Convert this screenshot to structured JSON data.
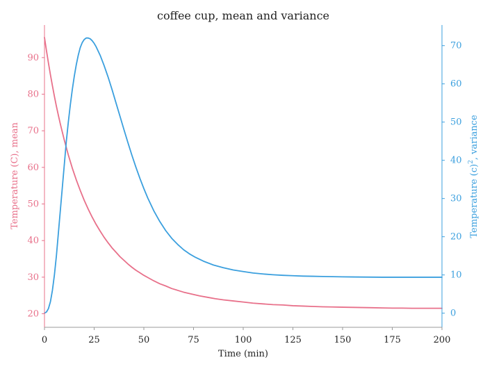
{
  "chart_data": {
    "type": "line",
    "title": "coffee cup, mean and variance",
    "xlabel": "Time (min)",
    "ylabel_left": "Temperature (C), mean",
    "ylabel_right_prefix": "Temperature (c)",
    "ylabel_right_sup": "2",
    "ylabel_right_suffix": ", variance",
    "xlim": [
      0,
      200
    ],
    "ylim_left": [
      16.3,
      98.9
    ],
    "ylim_right": [
      -3.7,
      75.4
    ],
    "x_ticks": [
      "0",
      "25",
      "50",
      "75",
      "100",
      "125",
      "150",
      "175",
      "200"
    ],
    "y_left_ticks": [
      "20",
      "30",
      "40",
      "50",
      "60",
      "70",
      "80",
      "90"
    ],
    "y_right_ticks": [
      "0",
      "10",
      "20",
      "30",
      "40",
      "50",
      "60",
      "70"
    ],
    "grid": false,
    "series": [
      {
        "axis": "left",
        "color": "#e8708a",
        "points": [
          [
            0,
            95.5
          ],
          [
            1,
            91.9
          ],
          [
            2,
            88.5
          ],
          [
            3,
            85.3
          ],
          [
            4,
            82.3
          ],
          [
            5,
            79.4
          ],
          [
            6,
            76.7
          ],
          [
            7,
            74.2
          ],
          [
            8,
            71.8
          ],
          [
            10,
            67.4
          ],
          [
            12,
            63.4
          ],
          [
            14,
            59.8
          ],
          [
            16,
            56.6
          ],
          [
            18,
            53.7
          ],
          [
            20,
            51.0
          ],
          [
            22,
            48.6
          ],
          [
            24,
            46.4
          ],
          [
            26,
            44.4
          ],
          [
            28,
            42.6
          ],
          [
            30,
            40.9
          ],
          [
            32,
            39.4
          ],
          [
            34,
            38.0
          ],
          [
            36,
            36.8
          ],
          [
            38,
            35.6
          ],
          [
            40,
            34.6
          ],
          [
            42,
            33.6
          ],
          [
            44,
            32.7
          ],
          [
            46,
            31.9
          ],
          [
            48,
            31.2
          ],
          [
            50,
            30.5
          ],
          [
            52,
            29.9
          ],
          [
            55,
            29.0
          ],
          [
            58,
            28.2
          ],
          [
            61,
            27.6
          ],
          [
            64,
            26.9
          ],
          [
            67,
            26.4
          ],
          [
            70,
            25.9
          ],
          [
            74,
            25.4
          ],
          [
            78,
            24.9
          ],
          [
            82,
            24.5
          ],
          [
            86,
            24.1
          ],
          [
            90,
            23.8
          ],
          [
            95,
            23.5
          ],
          [
            100,
            23.2
          ],
          [
            105,
            22.9
          ],
          [
            110,
            22.7
          ],
          [
            115,
            22.5
          ],
          [
            120,
            22.4
          ],
          [
            125,
            22.2
          ],
          [
            130,
            22.1
          ],
          [
            135,
            22.0
          ],
          [
            140,
            21.9
          ],
          [
            145,
            21.85
          ],
          [
            150,
            21.8
          ],
          [
            155,
            21.75
          ],
          [
            160,
            21.7
          ],
          [
            165,
            21.65
          ],
          [
            170,
            21.6
          ],
          [
            175,
            21.55
          ],
          [
            180,
            21.55
          ],
          [
            185,
            21.5
          ],
          [
            190,
            21.5
          ],
          [
            195,
            21.5
          ],
          [
            200,
            21.5
          ]
        ]
      },
      {
        "axis": "right",
        "color": "#3a9fde",
        "points": [
          [
            0,
            0.0
          ],
          [
            1,
            0.3
          ],
          [
            2,
            1.2
          ],
          [
            3,
            3.0
          ],
          [
            4,
            6.0
          ],
          [
            5,
            10.0
          ],
          [
            6,
            15.0
          ],
          [
            7,
            21.0
          ],
          [
            8,
            27.0
          ],
          [
            9,
            33.0
          ],
          [
            10,
            39.0
          ],
          [
            11,
            45.0
          ],
          [
            12,
            50.0
          ],
          [
            13,
            54.5
          ],
          [
            14,
            58.5
          ],
          [
            15,
            62.0
          ],
          [
            16,
            65.0
          ],
          [
            17,
            67.5
          ],
          [
            18,
            69.5
          ],
          [
            19,
            70.8
          ],
          [
            20,
            71.6
          ],
          [
            21,
            72.0
          ],
          [
            22,
            72.0
          ],
          [
            23,
            71.8
          ],
          [
            24,
            71.3
          ],
          [
            25,
            70.6
          ],
          [
            26,
            69.7
          ],
          [
            28,
            67.5
          ],
          [
            30,
            64.8
          ],
          [
            32,
            61.8
          ],
          [
            34,
            58.5
          ],
          [
            36,
            55.0
          ],
          [
            38,
            51.5
          ],
          [
            40,
            48.0
          ],
          [
            42,
            44.6
          ],
          [
            44,
            41.3
          ],
          [
            46,
            38.2
          ],
          [
            48,
            35.3
          ],
          [
            50,
            32.6
          ],
          [
            52,
            30.1
          ],
          [
            55,
            26.8
          ],
          [
            58,
            24.0
          ],
          [
            61,
            21.6
          ],
          [
            64,
            19.6
          ],
          [
            67,
            18.0
          ],
          [
            70,
            16.6
          ],
          [
            73,
            15.5
          ],
          [
            76,
            14.6
          ],
          [
            80,
            13.6
          ],
          [
            85,
            12.6
          ],
          [
            90,
            11.9
          ],
          [
            95,
            11.3
          ],
          [
            100,
            10.9
          ],
          [
            105,
            10.5
          ],
          [
            110,
            10.25
          ],
          [
            115,
            10.05
          ],
          [
            120,
            9.9
          ],
          [
            125,
            9.8
          ],
          [
            130,
            9.7
          ],
          [
            135,
            9.65
          ],
          [
            140,
            9.6
          ],
          [
            150,
            9.5
          ],
          [
            160,
            9.45
          ],
          [
            170,
            9.4
          ],
          [
            180,
            9.4
          ],
          [
            190,
            9.4
          ],
          [
            200,
            9.4
          ]
        ]
      }
    ]
  }
}
